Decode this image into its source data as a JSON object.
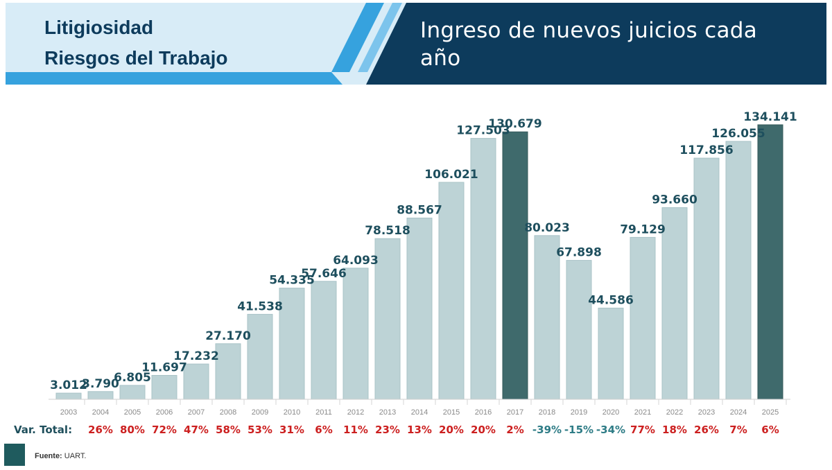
{
  "header": {
    "title_line1": "Litigiosidad",
    "title_line2": "Riesgos del Trabajo",
    "subtitle_line1": "Ingreso de nuevos juicios cada",
    "subtitle_line2": "año"
  },
  "colors": {
    "bar_default": "#bdd3d6",
    "bar_highlight": "#3f6a6c",
    "value_label": "#1e4f5e",
    "var_positive": "#cc1f1f",
    "var_negative": "#2e7c86",
    "header_dark": "#0d3b5c",
    "header_light": "#d8ecf7",
    "header_accent": "#36a2de"
  },
  "chart_data": {
    "type": "bar",
    "categories": [
      "2003",
      "2004",
      "2005",
      "2006",
      "2007",
      "2008",
      "2009",
      "2010",
      "2011",
      "2012",
      "2013",
      "2014",
      "2015",
      "2016",
      "2017",
      "2018",
      "2019",
      "2020",
      "2021",
      "2022",
      "2023",
      "2024",
      "2025"
    ],
    "values": [
      3012,
      3790,
      6805,
      11697,
      17232,
      27170,
      41538,
      54335,
      57646,
      64093,
      78518,
      88567,
      106021,
      127503,
      130679,
      80023,
      67898,
      44586,
      79129,
      93660,
      117856,
      126055,
      134141
    ],
    "value_labels": [
      "3.012",
      "3.790",
      "6.805",
      "11.697",
      "17.232",
      "27.170",
      "41.538",
      "54.335",
      "57.646",
      "64.093",
      "78.518",
      "88.567",
      "106.021",
      "127.503",
      "130.679",
      "80.023",
      "67.898",
      "44.586",
      "79.129",
      "93.660",
      "117.856",
      "126.055",
      "134.141"
    ],
    "highlighted": [
      "2017",
      "2025"
    ],
    "ylim": [
      0,
      134141
    ]
  },
  "variation": {
    "label": "Var. Total:",
    "values": [
      "26%",
      "80%",
      "72%",
      "47%",
      "58%",
      "53%",
      "31%",
      "6%",
      "11%",
      "23%",
      "13%",
      "20%",
      "20%",
      "2%",
      "-39%",
      "-15%",
      "-34%",
      "77%",
      "18%",
      "26%",
      "7%",
      "6%"
    ]
  },
  "source": {
    "label": "Fuente:",
    "value": "UART."
  }
}
